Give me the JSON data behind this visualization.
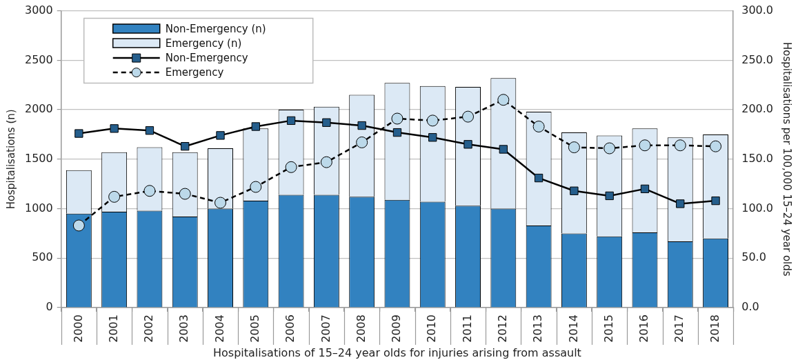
{
  "chart_data": {
    "type": "bar",
    "stacked": true,
    "xlabel": "Hospitalisations of 15–24 year olds for injuries arising from assault",
    "ylabel": "Hospitalisations (n)",
    "y2label": "Hospitalisations per 100,000 15–24 year olds",
    "categories": [
      "2000",
      "2001",
      "2002",
      "2003",
      "2004",
      "2005",
      "2006",
      "2007",
      "2008",
      "2009",
      "2010",
      "2011",
      "2012",
      "2013",
      "2014",
      "2015",
      "2016",
      "2017",
      "2018"
    ],
    "series": [
      {
        "name": "Non-Emergency (n)",
        "color": "#3282c0",
        "values": [
          950,
          970,
          980,
          920,
          1000,
          1080,
          1140,
          1140,
          1120,
          1090,
          1070,
          1030,
          1000,
          830,
          750,
          720,
          760,
          670,
          700
        ]
      },
      {
        "name": "Emergency (n)",
        "color": "#dce9f5",
        "values": [
          440,
          600,
          640,
          650,
          610,
          730,
          860,
          890,
          1030,
          1180,
          1170,
          1200,
          1320,
          1150,
          1020,
          1020,
          1050,
          1050,
          1050
        ]
      },
      {
        "name": "Non-Emergency",
        "type": "line",
        "axis": "y2",
        "color": "#255e8c",
        "marker": "square",
        "line_style": "solid",
        "values": [
          176,
          181,
          179,
          163,
          174,
          183,
          189,
          187,
          184,
          177,
          172,
          165,
          160,
          131,
          118,
          113,
          120,
          105,
          108
        ]
      },
      {
        "name": "Emergency",
        "type": "line",
        "axis": "y2",
        "color": "#bcd9ea",
        "marker": "circle",
        "line_style": "dashed",
        "values": [
          83,
          112,
          118,
          115,
          106,
          122,
          142,
          147,
          167,
          191,
          189,
          193,
          210,
          183,
          162,
          161,
          164,
          164,
          163
        ]
      }
    ],
    "ylim": [
      0,
      3000
    ],
    "yticks": [
      0,
      500,
      1000,
      1500,
      2000,
      2500,
      3000
    ],
    "y2lim": [
      0,
      300
    ],
    "y2ticks": [
      {
        "value": 0,
        "label": "0.0"
      },
      {
        "value": 50,
        "label": "50.0"
      },
      {
        "value": 100,
        "label": "100.0"
      },
      {
        "value": 150,
        "label": "150.0"
      },
      {
        "value": 200,
        "label": "200.0"
      },
      {
        "value": 250,
        "label": "250.0"
      },
      {
        "value": 300,
        "label": "300.0"
      }
    ],
    "grid": "y",
    "legend": "top left"
  }
}
